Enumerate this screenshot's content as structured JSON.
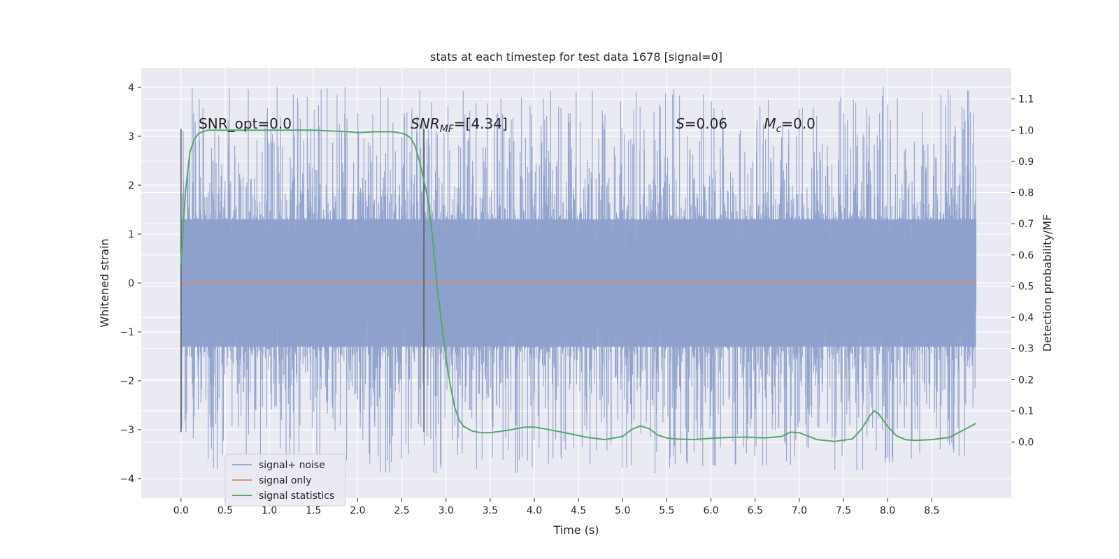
{
  "chart_data": {
    "type": "line",
    "title": "stats at each timestep for test data 1678 [signal=0]",
    "xlabel": "Time (s)",
    "ylabel": "Whitened strain",
    "y2label": "Detection probability/MF",
    "xlim": [
      -0.45,
      9.4
    ],
    "ylim": [
      -4.4,
      4.4
    ],
    "y2lim": [
      -0.18,
      1.2
    ],
    "x_ticks": [
      "0.0",
      "0.5",
      "1.0",
      "1.5",
      "2.0",
      "2.5",
      "3.0",
      "3.5",
      "4.0",
      "4.5",
      "5.0",
      "5.5",
      "6.0",
      "6.5",
      "7.0",
      "7.5",
      "8.0",
      "8.5"
    ],
    "y_ticks": [
      "4",
      "3",
      "2",
      "1",
      "0",
      "−1",
      "−2",
      "−3",
      "−4"
    ],
    "y2_ticks": [
      "1.1",
      "1.0",
      "0.9",
      "0.8",
      "0.7",
      "0.6",
      "0.5",
      "0.4",
      "0.3",
      "0.2",
      "0.1",
      "0.0"
    ],
    "grid": true,
    "legend_position": "lower-left",
    "colors": {
      "background": "#eaeaf2",
      "grid": "#ffffff",
      "noise": "#8da0cb",
      "signal_only": "#dd8452",
      "statistics": "#55a868",
      "vline": "#555555"
    },
    "series": [
      {
        "name": "signal+ noise",
        "kind": "noise",
        "x_range": [
          0,
          9.0
        ],
        "envelope_typical": [
          -1.3,
          1.3
        ],
        "envelope_max": [
          -3.9,
          4.02
        ]
      },
      {
        "name": "signal only",
        "kind": "line",
        "x": [
          0,
          9.0
        ],
        "y": [
          0,
          0
        ]
      },
      {
        "name": "signal statistics",
        "kind": "line",
        "axis": "right",
        "x": [
          0.0,
          0.05,
          0.1,
          0.15,
          0.2,
          0.3,
          0.5,
          1.0,
          1.5,
          1.9,
          2.0,
          2.2,
          2.4,
          2.5,
          2.55,
          2.6,
          2.65,
          2.7,
          2.75,
          2.8,
          2.85,
          2.9,
          2.95,
          3.0,
          3.05,
          3.1,
          3.15,
          3.2,
          3.3,
          3.4,
          3.5,
          3.7,
          3.9,
          4.0,
          4.2,
          4.4,
          4.6,
          4.8,
          5.0,
          5.1,
          5.2,
          5.3,
          5.4,
          5.5,
          5.6,
          5.8,
          6.0,
          6.2,
          6.4,
          6.6,
          6.8,
          6.9,
          7.0,
          7.2,
          7.4,
          7.6,
          7.7,
          7.8,
          7.85,
          7.9,
          8.0,
          8.1,
          8.2,
          8.3,
          8.5,
          8.7,
          8.9,
          9.0
        ],
        "y": [
          0.57,
          0.8,
          0.93,
          0.97,
          0.99,
          1.0,
          1.0,
          1.0,
          1.0,
          0.995,
          0.992,
          0.995,
          0.995,
          0.99,
          0.985,
          0.975,
          0.95,
          0.9,
          0.84,
          0.77,
          0.65,
          0.5,
          0.38,
          0.27,
          0.18,
          0.11,
          0.07,
          0.05,
          0.035,
          0.03,
          0.03,
          0.038,
          0.048,
          0.048,
          0.038,
          0.027,
          0.015,
          0.008,
          0.018,
          0.04,
          0.052,
          0.043,
          0.022,
          0.013,
          0.01,
          0.008,
          0.012,
          0.015,
          0.016,
          0.013,
          0.018,
          0.032,
          0.03,
          0.008,
          0.002,
          0.01,
          0.04,
          0.085,
          0.1,
          0.09,
          0.05,
          0.02,
          0.008,
          0.005,
          0.008,
          0.015,
          0.045,
          0.06
        ]
      }
    ],
    "vlines": [
      0.0,
      2.75
    ],
    "annotations": [
      {
        "text": "SNR_opt=0.0",
        "x": 0.2
      },
      {
        "text": "SNR",
        "sub": "MF",
        "post": "=[4.34]",
        "italic_prefix": true,
        "x": 2.6
      },
      {
        "text": "S",
        "post": "=0.06",
        "italic_prefix": true,
        "x": 5.6
      },
      {
        "text": "M",
        "sub": "c",
        "post": "=0.0",
        "italic_prefix": true,
        "x": 6.6
      }
    ]
  }
}
